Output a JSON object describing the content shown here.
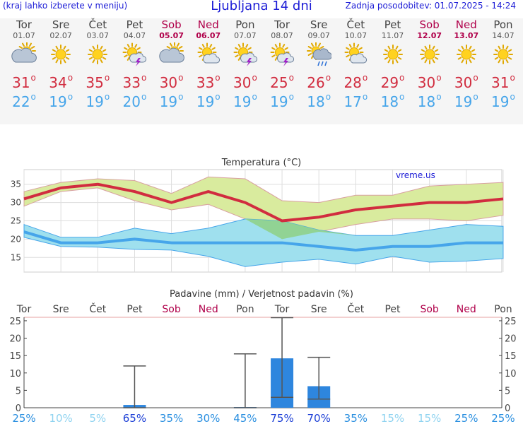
{
  "header": {
    "menu_hint": "(kraj lahko izberete v meniju)",
    "title": "Ljubljana 14 dni",
    "updated": "Zadnja posodobitev: 01.07.2025 - 14:24"
  },
  "colors": {
    "max_temp": "#d12c3f",
    "min_temp": "#46a5ea",
    "weekend": "#b0004a",
    "precip_bar": "#2e86de",
    "band_max": "#d9eb9e",
    "band_min": "#9fe0ee",
    "overlap": "#8fd18a"
  },
  "days": [
    {
      "name": "Tor",
      "date": "01.07",
      "weekend": false,
      "icon": "cloudy-sun-icon",
      "tmax": "31",
      "tmin": "22"
    },
    {
      "name": "Sre",
      "date": "02.07",
      "weekend": false,
      "icon": "sun-icon",
      "tmax": "34",
      "tmin": "19"
    },
    {
      "name": "Čet",
      "date": "03.07",
      "weekend": false,
      "icon": "sun-icon",
      "tmax": "35",
      "tmin": "19"
    },
    {
      "name": "Pet",
      "date": "04.07",
      "weekend": false,
      "icon": "sun-storm-icon",
      "tmax": "33",
      "tmin": "20"
    },
    {
      "name": "Sob",
      "date": "05.07",
      "weekend": true,
      "icon": "cloudy-sun-icon",
      "tmax": "30",
      "tmin": "19"
    },
    {
      "name": "Ned",
      "date": "06.07",
      "weekend": true,
      "icon": "sun-cloud-icon",
      "tmax": "33",
      "tmin": "19"
    },
    {
      "name": "Pon",
      "date": "07.07",
      "weekend": false,
      "icon": "sun-storm-icon",
      "tmax": "30",
      "tmin": "19"
    },
    {
      "name": "Tor",
      "date": "08.07",
      "weekend": false,
      "icon": "sun-storm-icon",
      "tmax": "25",
      "tmin": "19"
    },
    {
      "name": "Sre",
      "date": "09.07",
      "weekend": false,
      "icon": "sun-rain-icon",
      "tmax": "26",
      "tmin": "18"
    },
    {
      "name": "Čet",
      "date": "10.07",
      "weekend": false,
      "icon": "sun-cloud-icon",
      "tmax": "28",
      "tmin": "17"
    },
    {
      "name": "Pet",
      "date": "11.07",
      "weekend": false,
      "icon": "sun-icon",
      "tmax": "29",
      "tmin": "18"
    },
    {
      "name": "Sob",
      "date": "12.07",
      "weekend": true,
      "icon": "sun-icon",
      "tmax": "30",
      "tmin": "18"
    },
    {
      "name": "Ned",
      "date": "13.07",
      "weekend": true,
      "icon": "sun-icon",
      "tmax": "30",
      "tmin": "19"
    },
    {
      "name": "Pon",
      "date": "14.07",
      "weekend": false,
      "icon": "sun-icon",
      "tmax": "31",
      "tmin": "19"
    }
  ],
  "chart_data": [
    {
      "type": "line",
      "title": "Temperatura (°C)",
      "watermark": "vreme.us",
      "ylim": [
        11,
        39
      ],
      "yticks": [
        15,
        20,
        25,
        30,
        35
      ],
      "grid": true,
      "series": [
        {
          "key": "max",
          "values": [
            31,
            34,
            35,
            33,
            30,
            33,
            30,
            25,
            26,
            28,
            29,
            30,
            30,
            31
          ]
        },
        {
          "key": "max_upper",
          "values": [
            33,
            35.5,
            36.5,
            36,
            32.5,
            37,
            36.5,
            30.5,
            30,
            32,
            32,
            34.5,
            35,
            35.5
          ]
        },
        {
          "key": "max_lower",
          "values": [
            29,
            33,
            34,
            30.5,
            28,
            29.5,
            25.5,
            20,
            22,
            24,
            25.5,
            25.5,
            25,
            26.5
          ]
        },
        {
          "key": "min",
          "values": [
            22,
            19,
            19,
            20,
            19,
            19,
            19,
            19,
            18,
            17,
            18,
            18,
            19,
            19
          ]
        },
        {
          "key": "min_upper",
          "values": [
            24,
            20.5,
            20.5,
            23,
            21.5,
            23,
            25.5,
            25,
            22.5,
            21,
            21,
            22.5,
            24,
            23.5
          ]
        },
        {
          "key": "min_lower",
          "values": [
            20.5,
            18,
            17.8,
            17.2,
            17,
            15.3,
            12.5,
            13.7,
            14.5,
            13.2,
            15.3,
            13.7,
            14,
            14.7
          ]
        }
      ]
    },
    {
      "type": "bar",
      "title": "Padavine (mm) / Verjetnost padavin (%)",
      "ylim": [
        0,
        26
      ],
      "yticks": [
        0,
        5,
        10,
        15,
        20,
        25
      ],
      "values": [
        0,
        0,
        0,
        0.8,
        0,
        0,
        0.2,
        14.2,
        6.2,
        0,
        0,
        0,
        0,
        0
      ],
      "errors": [
        null,
        null,
        null,
        [
          0,
          12
        ],
        null,
        null,
        [
          0,
          15.5
        ],
        [
          3,
          25.9
        ],
        [
          2.5,
          14.5
        ],
        null,
        null,
        null,
        null,
        null
      ],
      "probability": [
        "25%",
        "10%",
        "5%",
        "65%",
        "35%",
        "30%",
        "45%",
        "75%",
        "70%",
        "35%",
        "15%",
        "15%",
        "25%",
        "25%"
      ]
    }
  ]
}
